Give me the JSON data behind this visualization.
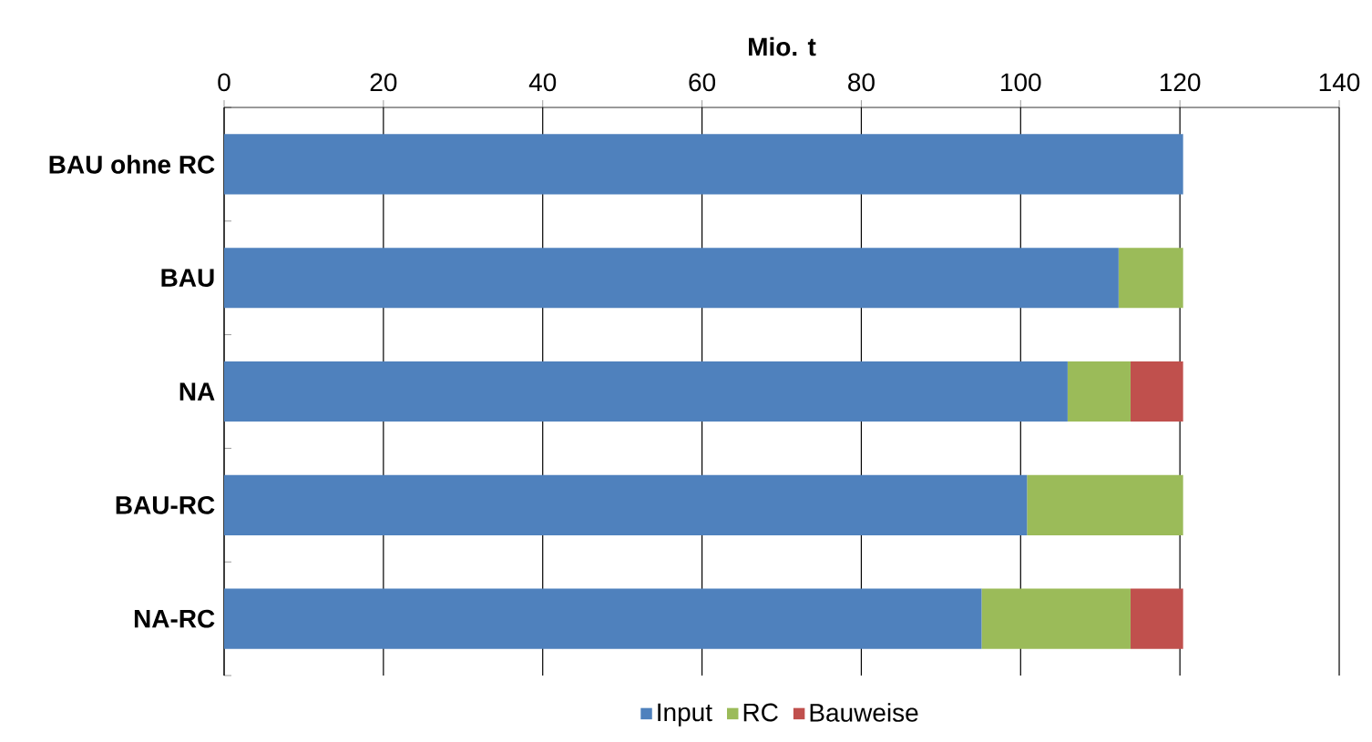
{
  "chart_data": {
    "type": "bar",
    "orientation": "horizontal",
    "stacked": true,
    "xlabel": "Mio. t",
    "categories": [
      "BAU ohne RC",
      "BAU",
      "NA",
      "BAU-RC",
      "NA-RC"
    ],
    "series": [
      {
        "name": "Input",
        "color": "#4f81bd",
        "values": [
          120.4,
          112.3,
          105.9,
          100.8,
          95.1
        ]
      },
      {
        "name": "RC",
        "color": "#9bbb59",
        "values": [
          null,
          8.1,
          7.9,
          19.6,
          18.7
        ]
      },
      {
        "name": "Bauweise",
        "color": "#c0504d",
        "values": [
          null,
          null,
          6.6,
          null,
          6.6
        ]
      }
    ],
    "xlim": [
      0,
      140
    ],
    "xticks": [
      0,
      20,
      40,
      60,
      80,
      100,
      120,
      140
    ],
    "grid": "x",
    "legend": "bottom"
  }
}
